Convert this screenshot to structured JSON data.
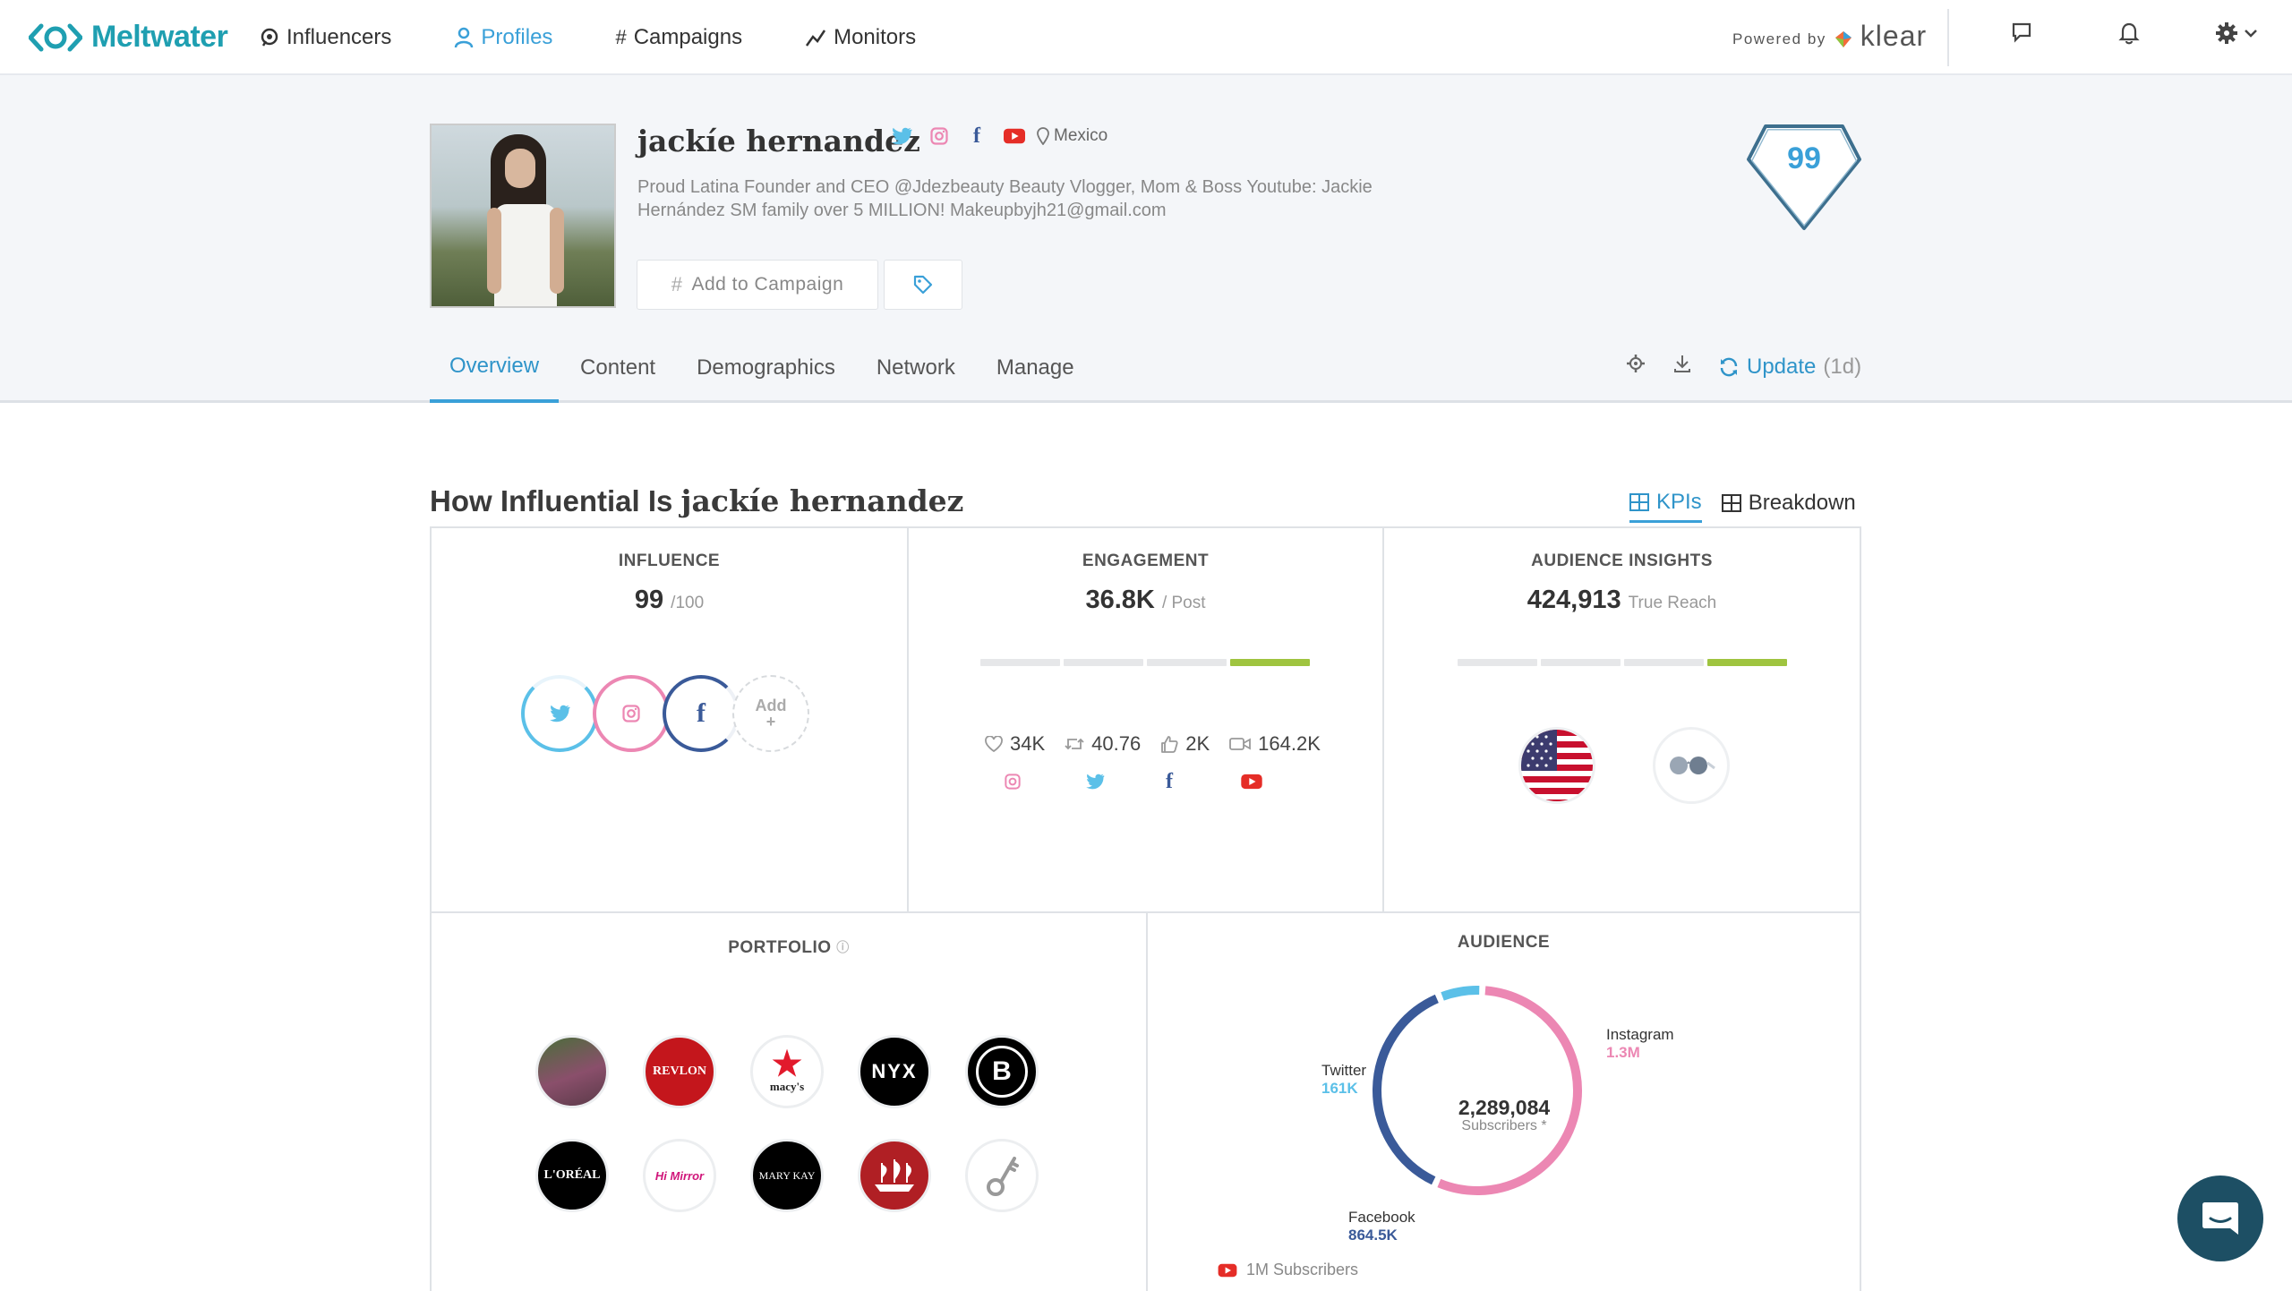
{
  "app": {
    "logo_text": "Meltwater",
    "brand_color": "#1f9fb1",
    "accent": "#3aa0d8"
  },
  "nav": {
    "items": [
      {
        "label": "Influencers",
        "icon": "speech-bubble-icon"
      },
      {
        "label": "Profiles",
        "icon": "person-icon",
        "active": true
      },
      {
        "label": "Campaigns",
        "icon": "hashtag-icon"
      },
      {
        "label": "Monitors",
        "icon": "trend-line-icon"
      }
    ],
    "powered_by": "Powered by",
    "powered_brand": "klear"
  },
  "profile": {
    "name": "jackíe hernandez",
    "location": "Mexico",
    "bio": "Proud Latina Founder and CEO @Jdezbeauty Beauty Vlogger, Mom & Boss Youtube: Jackie Hernández SM family over 5 MILLION! Makeupbyjh21@gmail.com",
    "add_campaign_label": "Add to Campaign",
    "score": "99"
  },
  "tabs": {
    "items": [
      "Overview",
      "Content",
      "Demographics",
      "Network",
      "Manage"
    ],
    "active": "Overview",
    "update_label": "Update",
    "update_age": "(1d)"
  },
  "section": {
    "title_prefix": "How Influential Is",
    "title_name": "jackíe hernandez",
    "toggle_kpis": "KPIs",
    "toggle_breakdown": "Breakdown"
  },
  "influence": {
    "title": "INFLUENCE",
    "value": "99",
    "sub": "/100",
    "add_label": "Add",
    "add_plus": "+"
  },
  "engagement": {
    "title": "ENGAGEMENT",
    "value": "36.8K",
    "sub": "/ Post",
    "level": "4 of 4 segments, last highlighted",
    "stats": [
      {
        "icon": "heart-icon",
        "value": "34K"
      },
      {
        "icon": "retweet-icon",
        "value": "40.76"
      },
      {
        "icon": "thumbs-up-icon",
        "value": "2K"
      },
      {
        "icon": "video-icon",
        "value": "164.2K"
      }
    ]
  },
  "audience_insights": {
    "title": "AUDIENCE INSIGHTS",
    "value": "424,913",
    "sub": "True Reach"
  },
  "portfolio": {
    "title": "PORTFOLIO",
    "brands": [
      {
        "name": "person-photo",
        "label": ""
      },
      {
        "name": "revlon-logo",
        "label": "REVLON"
      },
      {
        "name": "macys-logo",
        "label": "macy's"
      },
      {
        "name": "nyx-logo",
        "label": "NYX"
      },
      {
        "name": "b-logo",
        "label": "B"
      },
      {
        "name": "loreal-logo",
        "label": "L'ORÉAL"
      },
      {
        "name": "hi-mirror-logo",
        "label": "Hi Mirror"
      },
      {
        "name": "mary-kay-logo",
        "label": "MARY KAY"
      },
      {
        "name": "ship-logo",
        "label": ""
      },
      {
        "name": "key-logo",
        "label": ""
      }
    ]
  },
  "audience": {
    "title": "AUDIENCE",
    "total": "2,289,084",
    "total_label": "Subscribers *",
    "youtube_label": "1M Subscribers",
    "chart_data": {
      "type": "pie",
      "series": [
        {
          "name": "Instagram",
          "label": "1.3M",
          "value": 1300000,
          "color": "#ec87b3"
        },
        {
          "name": "Facebook",
          "label": "864.5K",
          "value": 864500,
          "color": "#3a5a99"
        },
        {
          "name": "Twitter",
          "label": "161K",
          "value": 161000,
          "color": "#5bc0e8"
        }
      ]
    }
  }
}
